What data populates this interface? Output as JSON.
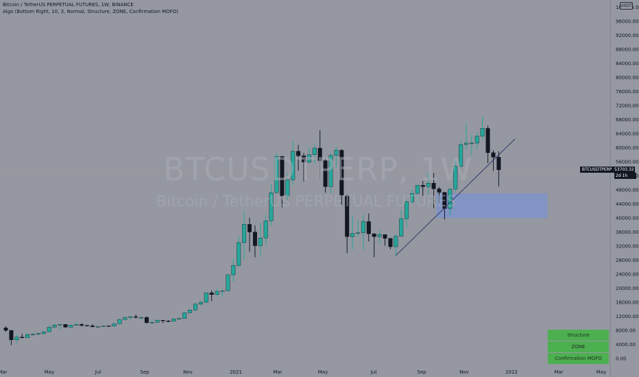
{
  "header": {
    "title": "Bitcoin / TetherUS PERPETUAL FUTURES, 1W, BINANCE",
    "indicator": "Algo (Bottom Right, 10, 3, Normal, Structure, ZONE, Confirmation MOFO)"
  },
  "watermark": {
    "symbol": "BTCUSDTPERP, 1W",
    "name": "Bitcoin / TetherUS PERPETUAL FUTURES"
  },
  "price_axis": {
    "currency_badge": "USDT",
    "last_symbol": "BTCUSDTPERP",
    "last_price": "53703.32",
    "countdown": "2d 1h",
    "tick_labels": [
      "100000.00",
      "96000.00",
      "92000.00",
      "88000.00",
      "84000.00",
      "80000.00",
      "76000.00",
      "72000.00",
      "68000.00",
      "64000.00",
      "60000.00",
      "56000.00",
      "52000.00",
      "48000.00",
      "44000.00",
      "40000.00",
      "36000.00",
      "32000.00",
      "28000.00",
      "24000.00",
      "20000.00",
      "16000.00",
      "12000.00",
      "8000.00",
      "4000.00",
      "0.00"
    ]
  },
  "time_axis": {
    "labels": [
      "Mar",
      "May",
      "Jul",
      "Sep",
      "Nov",
      "2021",
      "Mar",
      "May",
      "Jul",
      "Sep",
      "Nov",
      "2022",
      "Mar",
      "May"
    ]
  },
  "status_panel": {
    "items": [
      "Structure",
      "ZONE",
      "Confirmation MOFO"
    ],
    "color": "#4caf50"
  },
  "colors": {
    "background": "#9598a1",
    "up": "#26a69a",
    "down": "#131722",
    "zone": "#7b93cf",
    "last_price_line": "#c98a8a"
  },
  "chart_data": {
    "type": "candlestick",
    "interval": "1W",
    "ylim": [
      0,
      100000
    ],
    "xlim": [
      "2020-03-02",
      "2022-05-30"
    ],
    "series": [
      {
        "date": "2020-03-02",
        "open": 8700,
        "high": 9200,
        "low": 7600,
        "close": 8000
      },
      {
        "date": "2020-03-09",
        "open": 8000,
        "high": 8100,
        "low": 3800,
        "close": 5300
      },
      {
        "date": "2020-03-16",
        "open": 5300,
        "high": 6900,
        "low": 4400,
        "close": 6100
      },
      {
        "date": "2020-03-23",
        "open": 6100,
        "high": 7000,
        "low": 5700,
        "close": 5900
      },
      {
        "date": "2020-03-30",
        "open": 5900,
        "high": 7300,
        "low": 5900,
        "close": 6800
      },
      {
        "date": "2020-04-06",
        "open": 6800,
        "high": 7400,
        "low": 6500,
        "close": 6900
      },
      {
        "date": "2020-04-13",
        "open": 6900,
        "high": 7300,
        "low": 6600,
        "close": 7100
      },
      {
        "date": "2020-04-20",
        "open": 7100,
        "high": 7800,
        "low": 6800,
        "close": 7600
      },
      {
        "date": "2020-04-27",
        "open": 7600,
        "high": 9500,
        "low": 7600,
        "close": 8900
      },
      {
        "date": "2020-05-04",
        "open": 8900,
        "high": 10000,
        "low": 8500,
        "close": 9500
      },
      {
        "date": "2020-05-11",
        "open": 9500,
        "high": 9800,
        "low": 8200,
        "close": 9700
      },
      {
        "date": "2020-05-18",
        "open": 9700,
        "high": 9800,
        "low": 8800,
        "close": 8900
      },
      {
        "date": "2020-05-25",
        "open": 8900,
        "high": 9600,
        "low": 8700,
        "close": 9500
      },
      {
        "date": "2020-06-01",
        "open": 9500,
        "high": 10300,
        "low": 9300,
        "close": 9700
      },
      {
        "date": "2020-06-08",
        "open": 9700,
        "high": 10000,
        "low": 9100,
        "close": 9400
      },
      {
        "date": "2020-06-15",
        "open": 9400,
        "high": 9600,
        "low": 9200,
        "close": 9300
      },
      {
        "date": "2020-06-22",
        "open": 9300,
        "high": 9800,
        "low": 8900,
        "close": 9000
      },
      {
        "date": "2020-06-29",
        "open": 9000,
        "high": 9300,
        "low": 8900,
        "close": 9100
      },
      {
        "date": "2020-07-06",
        "open": 9100,
        "high": 9400,
        "low": 9000,
        "close": 9300
      },
      {
        "date": "2020-07-13",
        "open": 9300,
        "high": 9400,
        "low": 9100,
        "close": 9200
      },
      {
        "date": "2020-07-20",
        "open": 9200,
        "high": 10000,
        "low": 9100,
        "close": 9900
      },
      {
        "date": "2020-07-27",
        "open": 9900,
        "high": 11400,
        "low": 9900,
        "close": 11100
      },
      {
        "date": "2020-08-03",
        "open": 11100,
        "high": 11900,
        "low": 10900,
        "close": 11700
      },
      {
        "date": "2020-08-10",
        "open": 11700,
        "high": 12100,
        "low": 11100,
        "close": 11900
      },
      {
        "date": "2020-08-17",
        "open": 11900,
        "high": 12500,
        "low": 11400,
        "close": 11700
      },
      {
        "date": "2020-08-24",
        "open": 11700,
        "high": 11800,
        "low": 11100,
        "close": 11700
      },
      {
        "date": "2020-08-31",
        "open": 11700,
        "high": 12000,
        "low": 9900,
        "close": 10200
      },
      {
        "date": "2020-09-07",
        "open": 10200,
        "high": 10800,
        "low": 9900,
        "close": 10300
      },
      {
        "date": "2020-09-14",
        "open": 10300,
        "high": 11100,
        "low": 10300,
        "close": 10900
      },
      {
        "date": "2020-09-21",
        "open": 10900,
        "high": 10900,
        "low": 10100,
        "close": 10700
      },
      {
        "date": "2020-09-28",
        "open": 10700,
        "high": 10900,
        "low": 10400,
        "close": 10600
      },
      {
        "date": "2020-10-05",
        "open": 10600,
        "high": 11500,
        "low": 10500,
        "close": 11300
      },
      {
        "date": "2020-10-12",
        "open": 11300,
        "high": 11700,
        "low": 11200,
        "close": 11400
      },
      {
        "date": "2020-10-19",
        "open": 11400,
        "high": 13300,
        "low": 11400,
        "close": 13000
      },
      {
        "date": "2020-10-26",
        "open": 13000,
        "high": 14000,
        "low": 12900,
        "close": 13800
      },
      {
        "date": "2020-11-02",
        "open": 13800,
        "high": 15900,
        "low": 13500,
        "close": 15500
      },
      {
        "date": "2020-11-09",
        "open": 15500,
        "high": 16500,
        "low": 14900,
        "close": 16000
      },
      {
        "date": "2020-11-16",
        "open": 16000,
        "high": 18800,
        "low": 15800,
        "close": 18700
      },
      {
        "date": "2020-11-23",
        "open": 18700,
        "high": 19400,
        "low": 16300,
        "close": 18200
      },
      {
        "date": "2020-11-30",
        "open": 18200,
        "high": 19900,
        "low": 17600,
        "close": 19100
      },
      {
        "date": "2020-12-07",
        "open": 19100,
        "high": 19400,
        "low": 17600,
        "close": 19300
      },
      {
        "date": "2020-12-14",
        "open": 19300,
        "high": 24200,
        "low": 19100,
        "close": 23800
      },
      {
        "date": "2020-12-21",
        "open": 23800,
        "high": 28400,
        "low": 21800,
        "close": 26500
      },
      {
        "date": "2020-12-28",
        "open": 26500,
        "high": 34800,
        "low": 26100,
        "close": 33000
      },
      {
        "date": "2021-01-04",
        "open": 33000,
        "high": 42000,
        "low": 28100,
        "close": 38200
      },
      {
        "date": "2021-01-11",
        "open": 38200,
        "high": 40100,
        "low": 30400,
        "close": 36000
      },
      {
        "date": "2021-01-18",
        "open": 36000,
        "high": 37900,
        "low": 28800,
        "close": 32100
      },
      {
        "date": "2021-01-25",
        "open": 32100,
        "high": 38600,
        "low": 29200,
        "close": 34300
      },
      {
        "date": "2021-02-01",
        "open": 34300,
        "high": 40900,
        "low": 32300,
        "close": 39200
      },
      {
        "date": "2021-02-08",
        "open": 39200,
        "high": 49700,
        "low": 37900,
        "close": 47200
      },
      {
        "date": "2021-02-15",
        "open": 47200,
        "high": 58400,
        "low": 47100,
        "close": 57500
      },
      {
        "date": "2021-02-22",
        "open": 57500,
        "high": 57700,
        "low": 43000,
        "close": 46300
      },
      {
        "date": "2021-03-01",
        "open": 46300,
        "high": 52600,
        "low": 45000,
        "close": 50900
      },
      {
        "date": "2021-03-08",
        "open": 50900,
        "high": 61800,
        "low": 49300,
        "close": 59000
      },
      {
        "date": "2021-03-15",
        "open": 59000,
        "high": 60800,
        "low": 53500,
        "close": 57700
      },
      {
        "date": "2021-03-22",
        "open": 57700,
        "high": 58500,
        "low": 50400,
        "close": 55900
      },
      {
        "date": "2021-03-29",
        "open": 55900,
        "high": 60200,
        "low": 55500,
        "close": 58000
      },
      {
        "date": "2021-04-05",
        "open": 58000,
        "high": 61200,
        "low": 55500,
        "close": 59900
      },
      {
        "date": "2021-04-12",
        "open": 59900,
        "high": 65000,
        "low": 51000,
        "close": 56300
      },
      {
        "date": "2021-04-19",
        "open": 56300,
        "high": 57000,
        "low": 47200,
        "close": 48900
      },
      {
        "date": "2021-04-26",
        "open": 48900,
        "high": 58500,
        "low": 46900,
        "close": 57800
      },
      {
        "date": "2021-05-03",
        "open": 57800,
        "high": 60400,
        "low": 54500,
        "close": 59300
      },
      {
        "date": "2021-05-10",
        "open": 59300,
        "high": 59600,
        "low": 43800,
        "close": 46400
      },
      {
        "date": "2021-05-17",
        "open": 46400,
        "high": 46600,
        "low": 30000,
        "close": 34700
      },
      {
        "date": "2021-05-24",
        "open": 34700,
        "high": 40800,
        "low": 31100,
        "close": 35600
      },
      {
        "date": "2021-05-31",
        "open": 35600,
        "high": 39400,
        "low": 34800,
        "close": 35800
      },
      {
        "date": "2021-06-07",
        "open": 35800,
        "high": 40900,
        "low": 31000,
        "close": 39000
      },
      {
        "date": "2021-06-14",
        "open": 39000,
        "high": 41300,
        "low": 33300,
        "close": 35500
      },
      {
        "date": "2021-06-21",
        "open": 35500,
        "high": 35700,
        "low": 28800,
        "close": 34700
      },
      {
        "date": "2021-06-28",
        "open": 34700,
        "high": 36600,
        "low": 32700,
        "close": 35300
      },
      {
        "date": "2021-07-05",
        "open": 35300,
        "high": 35000,
        "low": 32100,
        "close": 34200
      },
      {
        "date": "2021-07-12",
        "open": 34200,
        "high": 34300,
        "low": 31100,
        "close": 31800
      },
      {
        "date": "2021-07-19",
        "open": 31800,
        "high": 35500,
        "low": 29300,
        "close": 34800
      },
      {
        "date": "2021-07-26",
        "open": 34800,
        "high": 42400,
        "low": 34800,
        "close": 39800
      },
      {
        "date": "2021-08-02",
        "open": 39800,
        "high": 45300,
        "low": 37400,
        "close": 44600
      },
      {
        "date": "2021-08-09",
        "open": 44600,
        "high": 48100,
        "low": 43800,
        "close": 47000
      },
      {
        "date": "2021-08-16",
        "open": 47000,
        "high": 49400,
        "low": 44300,
        "close": 49300
      },
      {
        "date": "2021-08-23",
        "open": 49300,
        "high": 50500,
        "low": 46300,
        "close": 48900
      },
      {
        "date": "2021-08-30",
        "open": 48900,
        "high": 52900,
        "low": 46600,
        "close": 49900
      },
      {
        "date": "2021-09-06",
        "open": 49900,
        "high": 52800,
        "low": 42800,
        "close": 48300
      },
      {
        "date": "2021-09-13",
        "open": 48300,
        "high": 48800,
        "low": 44200,
        "close": 47300
      },
      {
        "date": "2021-09-20",
        "open": 47300,
        "high": 47400,
        "low": 39600,
        "close": 42700
      },
      {
        "date": "2021-09-27",
        "open": 42700,
        "high": 48500,
        "low": 40800,
        "close": 48200
      },
      {
        "date": "2021-10-04",
        "open": 48200,
        "high": 56500,
        "low": 47200,
        "close": 54700
      },
      {
        "date": "2021-10-11",
        "open": 54700,
        "high": 62000,
        "low": 53900,
        "close": 60900
      },
      {
        "date": "2021-10-18",
        "open": 60900,
        "high": 67000,
        "low": 59500,
        "close": 61300
      },
      {
        "date": "2021-10-25",
        "open": 61300,
        "high": 63700,
        "low": 57800,
        "close": 61300
      },
      {
        "date": "2021-11-01",
        "open": 61300,
        "high": 64300,
        "low": 59500,
        "close": 63300
      },
      {
        "date": "2021-11-08",
        "open": 63300,
        "high": 69000,
        "low": 62300,
        "close": 65500
      },
      {
        "date": "2021-11-15",
        "open": 65500,
        "high": 66300,
        "low": 55600,
        "close": 58600
      },
      {
        "date": "2021-11-22",
        "open": 58600,
        "high": 59300,
        "low": 53400,
        "close": 57300
      },
      {
        "date": "2021-11-29",
        "open": 57300,
        "high": 59000,
        "low": 49000,
        "close": 53700
      }
    ],
    "zone": {
      "start": "2021-09-13",
      "end": "2022-01-31",
      "low": 40000,
      "high": 47000
    },
    "trendline": {
      "start": {
        "date": "2021-07-19",
        "value": 29300
      },
      "end": {
        "date": "2021-12-20",
        "value": 62500
      }
    },
    "last_price": 53703.32
  }
}
